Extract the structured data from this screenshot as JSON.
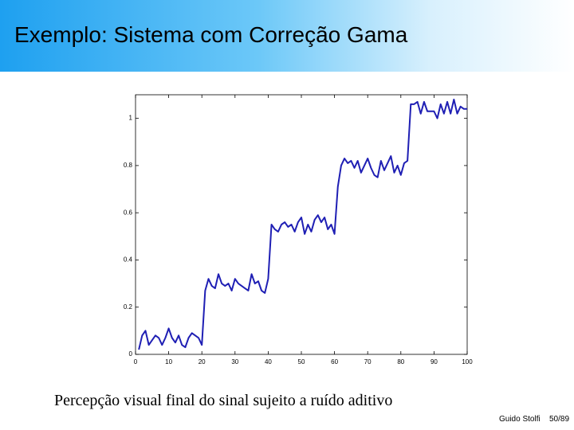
{
  "slide": {
    "title": "Exemplo: Sistema com Correção Gama",
    "caption": "Percepção visual final do sinal sujeito a ruído aditivo",
    "author": "Guido Stolfi",
    "page": "50/89"
  },
  "chart_data": {
    "type": "line",
    "color": "#1f1fb4",
    "x": [
      1,
      2,
      3,
      4,
      5,
      6,
      7,
      8,
      9,
      10,
      11,
      12,
      13,
      14,
      15,
      16,
      17,
      18,
      19,
      20,
      21,
      22,
      23,
      24,
      25,
      26,
      27,
      28,
      29,
      30,
      31,
      32,
      33,
      34,
      35,
      36,
      37,
      38,
      39,
      40,
      41,
      42,
      43,
      44,
      45,
      46,
      47,
      48,
      49,
      50,
      51,
      52,
      53,
      54,
      55,
      56,
      57,
      58,
      59,
      60,
      61,
      62,
      63,
      64,
      65,
      66,
      67,
      68,
      69,
      70,
      71,
      72,
      73,
      74,
      75,
      76,
      77,
      78,
      79,
      80,
      81,
      82,
      83,
      84,
      85,
      86,
      87,
      88,
      89,
      90,
      91,
      92,
      93,
      94,
      95,
      96,
      97,
      98,
      99,
      100
    ],
    "values": [
      0.02,
      0.08,
      0.1,
      0.04,
      0.06,
      0.08,
      0.07,
      0.04,
      0.07,
      0.11,
      0.07,
      0.05,
      0.08,
      0.04,
      0.03,
      0.07,
      0.09,
      0.08,
      0.07,
      0.04,
      0.27,
      0.32,
      0.29,
      0.28,
      0.34,
      0.3,
      0.29,
      0.3,
      0.27,
      0.32,
      0.3,
      0.29,
      0.28,
      0.27,
      0.34,
      0.3,
      0.31,
      0.27,
      0.26,
      0.32,
      0.55,
      0.53,
      0.52,
      0.55,
      0.56,
      0.54,
      0.55,
      0.52,
      0.56,
      0.58,
      0.51,
      0.55,
      0.52,
      0.57,
      0.59,
      0.56,
      0.58,
      0.53,
      0.55,
      0.51,
      0.71,
      0.8,
      0.83,
      0.81,
      0.82,
      0.79,
      0.82,
      0.77,
      0.8,
      0.83,
      0.79,
      0.76,
      0.75,
      0.82,
      0.78,
      0.81,
      0.84,
      0.77,
      0.8,
      0.76,
      0.81,
      0.82,
      1.06,
      1.06,
      1.07,
      1.02,
      1.07,
      1.03,
      1.03,
      1.03,
      1.0,
      1.06,
      1.02,
      1.07,
      1.02,
      1.08,
      1.02,
      1.05,
      1.04,
      1.04
    ],
    "xlim": [
      0,
      100
    ],
    "xticks": [
      0,
      10,
      20,
      30,
      40,
      50,
      60,
      70,
      80,
      90,
      100
    ],
    "ylim": [
      0,
      1.1
    ],
    "yticks": [
      0,
      0.2,
      0.4,
      0.6,
      0.8,
      1
    ]
  }
}
